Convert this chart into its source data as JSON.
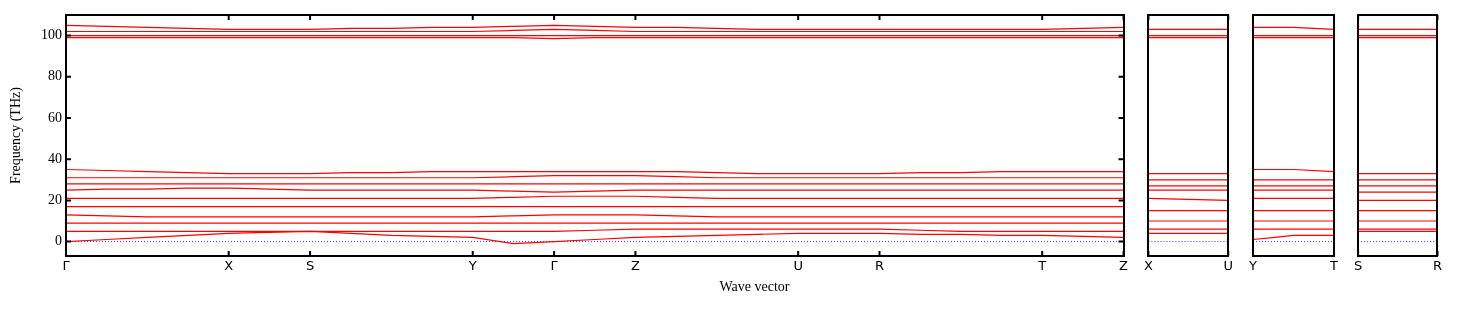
{
  "chart_data": [
    {
      "type": "line",
      "xlabel": "Wave vector",
      "ylabel": "Frequency (THz)",
      "categories": [
        "Γ",
        null,
        null,
        null,
        "X",
        null,
        "S",
        null,
        null,
        null,
        "Y",
        null,
        "Γ",
        null,
        "Z",
        null,
        null,
        null,
        "U",
        null,
        "R",
        null,
        null,
        null,
        "T",
        null,
        "Z"
      ],
      "ylim": [
        -7,
        110
      ],
      "yticks": [
        0,
        20,
        40,
        60,
        80,
        100
      ],
      "marker": "none",
      "line_style": "solid",
      "ref_lines": [
        {
          "axis": "y",
          "value": 0,
          "color": "#0000ff",
          "line_style": "dotted"
        }
      ],
      "series": [
        {
          "color": "#ff0000",
          "values": [
            105,
            104.5,
            104,
            103.5,
            103,
            103,
            103,
            103.5,
            103.5,
            104,
            104,
            104.5,
            105,
            104.5,
            104,
            104,
            103.5,
            103,
            103,
            103,
            103,
            103,
            103,
            103,
            103,
            103.5,
            104
          ]
        },
        {
          "color": "#ff0000",
          "values": [
            102,
            102,
            102,
            102,
            102,
            102,
            102,
            102,
            102,
            102,
            102,
            102.5,
            103,
            102.5,
            102,
            102,
            102,
            102,
            102,
            102,
            102,
            102,
            102,
            102,
            102,
            102,
            102
          ]
        },
        {
          "color": "#ff0000",
          "values": [
            100,
            100,
            100,
            100,
            100,
            100,
            100,
            100,
            100,
            100,
            100,
            100,
            100,
            100,
            100,
            100,
            100,
            100,
            100,
            100,
            100,
            100,
            100,
            100,
            100,
            100,
            100
          ]
        },
        {
          "color": "#ff0000",
          "values": [
            99,
            99,
            99,
            99,
            99,
            99,
            99,
            99,
            99,
            99,
            99,
            99,
            98.5,
            99,
            99,
            99,
            99,
            99,
            99,
            99,
            99,
            99,
            99,
            99,
            99,
            99,
            99
          ]
        },
        {
          "color": "#ff0000",
          "values": [
            35,
            34.5,
            34,
            33.5,
            33,
            33,
            33,
            33.5,
            33.5,
            34,
            34,
            34,
            34,
            34,
            34,
            34,
            33.5,
            33,
            33,
            33,
            33,
            33.5,
            33.5,
            34,
            34,
            34,
            34
          ]
        },
        {
          "color": "#ff0000",
          "values": [
            31,
            31,
            31,
            31,
            31,
            31,
            31,
            31,
            31,
            31,
            31,
            31.5,
            32,
            32,
            32,
            31.5,
            31,
            31,
            31,
            31,
            31,
            31,
            31,
            31,
            31,
            31,
            31
          ]
        },
        {
          "color": "#ff0000",
          "values": [
            28,
            28,
            28,
            28,
            28,
            28,
            28,
            28,
            28,
            28,
            28,
            28,
            28,
            28,
            28,
            28,
            28,
            28,
            28,
            28,
            28,
            28,
            28,
            28,
            28,
            28,
            28
          ]
        },
        {
          "color": "#ff0000",
          "values": [
            25,
            25.5,
            25.5,
            26,
            26,
            25.5,
            25,
            25,
            25,
            25,
            25,
            24.5,
            24,
            24.5,
            25,
            25,
            25,
            25,
            25,
            25,
            25,
            25,
            25,
            25,
            25,
            25,
            25
          ]
        },
        {
          "color": "#ff0000",
          "values": [
            21,
            21,
            21,
            21,
            21,
            21,
            21,
            21,
            21,
            21,
            21,
            21.5,
            22,
            22,
            22,
            21.5,
            21,
            21,
            21,
            21,
            21,
            21,
            21,
            21,
            21,
            21,
            21
          ]
        },
        {
          "color": "#ff0000",
          "values": [
            17,
            17,
            17,
            17,
            17,
            17,
            17,
            17,
            17,
            17,
            17,
            17,
            17,
            17,
            17,
            17,
            17,
            17,
            17,
            17,
            17,
            17,
            17,
            17,
            17,
            17,
            17
          ]
        },
        {
          "color": "#ff0000",
          "values": [
            13,
            12.5,
            12,
            12,
            12,
            12,
            12,
            12,
            12,
            12,
            12,
            12.5,
            13,
            13,
            13,
            12.5,
            12,
            12,
            12,
            12,
            12,
            12,
            12,
            12,
            12,
            12,
            12
          ]
        },
        {
          "color": "#ff0000",
          "values": [
            9,
            9,
            9,
            9,
            9,
            9,
            9,
            9,
            9,
            9,
            9,
            9,
            9,
            9,
            9,
            9,
            9,
            9,
            9,
            9,
            9,
            9,
            9,
            9,
            9,
            9,
            9
          ]
        },
        {
          "color": "#ff0000",
          "values": [
            5,
            5,
            5,
            5,
            5,
            5,
            5,
            5,
            5,
            5,
            5,
            5,
            5,
            5.5,
            6,
            6,
            6,
            6,
            6,
            6,
            6,
            5.5,
            5,
            5,
            5,
            5,
            5
          ]
        },
        {
          "color": "#ff0000",
          "values": [
            0,
            1,
            2,
            3,
            4,
            4.5,
            5,
            4,
            3,
            2.5,
            2,
            -1,
            0,
            1,
            2,
            2.5,
            3,
            3.5,
            4,
            4,
            4,
            3.5,
            3.5,
            3,
            3,
            2.5,
            2
          ]
        }
      ]
    },
    {
      "type": "line",
      "categories": [
        "X",
        null,
        "U"
      ],
      "ylim": [
        -7,
        110
      ],
      "yticks": [
        0,
        20,
        40,
        60,
        80,
        100
      ],
      "tick_labels": "x",
      "marker": "none",
      "line_style": "solid",
      "ref_lines": [
        {
          "axis": "y",
          "value": 0,
          "color": "#0000ff",
          "line_style": "dotted"
        }
      ],
      "series": [
        {
          "color": "#ff0000",
          "values": [
            103,
            103,
            103
          ]
        },
        {
          "color": "#ff0000",
          "values": [
            100,
            100,
            100
          ]
        },
        {
          "color": "#ff0000",
          "values": [
            99,
            99,
            99
          ]
        },
        {
          "color": "#ff0000",
          "values": [
            33,
            33,
            33
          ]
        },
        {
          "color": "#ff0000",
          "values": [
            30,
            30,
            30
          ]
        },
        {
          "color": "#ff0000",
          "values": [
            27,
            27,
            27
          ]
        },
        {
          "color": "#ff0000",
          "values": [
            25,
            25,
            25
          ]
        },
        {
          "color": "#ff0000",
          "values": [
            21,
            20.5,
            20
          ]
        },
        {
          "color": "#ff0000",
          "values": [
            15,
            15,
            15
          ]
        },
        {
          "color": "#ff0000",
          "values": [
            10,
            10,
            10
          ]
        },
        {
          "color": "#ff0000",
          "values": [
            6,
            6,
            6
          ]
        },
        {
          "color": "#ff0000",
          "values": [
            4,
            4,
            4
          ]
        }
      ]
    },
    {
      "type": "line",
      "categories": [
        "Y",
        null,
        "T"
      ],
      "ylim": [
        -7,
        110
      ],
      "yticks": [
        0,
        20,
        40,
        60,
        80,
        100
      ],
      "tick_labels": "x",
      "marker": "none",
      "line_style": "solid",
      "ref_lines": [
        {
          "axis": "y",
          "value": 0,
          "color": "#0000ff",
          "line_style": "dotted"
        }
      ],
      "series": [
        {
          "color": "#ff0000",
          "values": [
            104,
            104,
            103
          ]
        },
        {
          "color": "#ff0000",
          "values": [
            100,
            100,
            100
          ]
        },
        {
          "color": "#ff0000",
          "values": [
            99,
            99,
            99
          ]
        },
        {
          "color": "#ff0000",
          "values": [
            35,
            35,
            34
          ]
        },
        {
          "color": "#ff0000",
          "values": [
            30,
            30,
            30
          ]
        },
        {
          "color": "#ff0000",
          "values": [
            27,
            27,
            27
          ]
        },
        {
          "color": "#ff0000",
          "values": [
            25,
            25,
            25
          ]
        },
        {
          "color": "#ff0000",
          "values": [
            21,
            21,
            21
          ]
        },
        {
          "color": "#ff0000",
          "values": [
            15,
            15,
            15
          ]
        },
        {
          "color": "#ff0000",
          "values": [
            10,
            10,
            10
          ]
        },
        {
          "color": "#ff0000",
          "values": [
            6,
            6,
            6
          ]
        },
        {
          "color": "#ff0000",
          "values": [
            1,
            3,
            3
          ]
        }
      ]
    },
    {
      "type": "line",
      "categories": [
        "S",
        null,
        "R"
      ],
      "ylim": [
        -7,
        110
      ],
      "yticks": [
        0,
        20,
        40,
        60,
        80,
        100
      ],
      "tick_labels": "x",
      "marker": "none",
      "line_style": "solid",
      "ref_lines": [
        {
          "axis": "y",
          "value": 0,
          "color": "#0000ff",
          "line_style": "dotted"
        }
      ],
      "series": [
        {
          "color": "#ff0000",
          "values": [
            103,
            103,
            103
          ]
        },
        {
          "color": "#ff0000",
          "values": [
            100,
            100,
            100
          ]
        },
        {
          "color": "#ff0000",
          "values": [
            99,
            99,
            99
          ]
        },
        {
          "color": "#ff0000",
          "values": [
            33,
            33,
            33
          ]
        },
        {
          "color": "#ff0000",
          "values": [
            30,
            30,
            30
          ]
        },
        {
          "color": "#ff0000",
          "values": [
            27,
            27,
            27
          ]
        },
        {
          "color": "#ff0000",
          "values": [
            24,
            24,
            24
          ]
        },
        {
          "color": "#ff0000",
          "values": [
            20,
            20,
            20
          ]
        },
        {
          "color": "#ff0000",
          "values": [
            15,
            15,
            15
          ]
        },
        {
          "color": "#ff0000",
          "values": [
            10,
            10,
            10
          ]
        },
        {
          "color": "#ff0000",
          "values": [
            6,
            6,
            6
          ]
        },
        {
          "color": "#ff0000",
          "values": [
            5,
            5,
            5
          ]
        }
      ]
    }
  ]
}
